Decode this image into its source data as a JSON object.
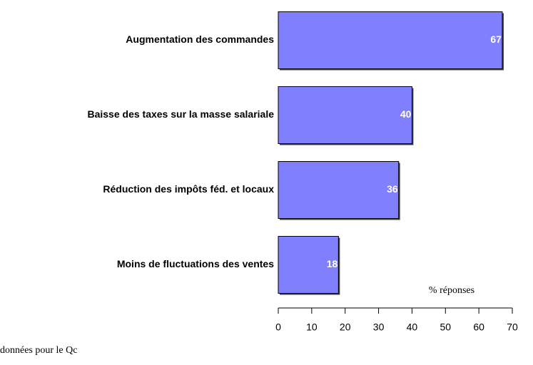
{
  "chart_data": {
    "type": "bar",
    "orientation": "horizontal",
    "categories": [
      "Augmentation des commandes",
      "Baisse des taxes sur la masse salariale",
      "Réduction des impôts féd. et locaux",
      "Moins de fluctuations des ventes"
    ],
    "values": [
      67,
      40,
      36,
      18
    ],
    "color": "#8080ff",
    "xlabel": "% réponses",
    "xlim": [
      0,
      70
    ],
    "xticks": [
      0,
      10,
      20,
      30,
      40,
      50,
      60,
      70
    ],
    "note": "données pour le Qc"
  }
}
